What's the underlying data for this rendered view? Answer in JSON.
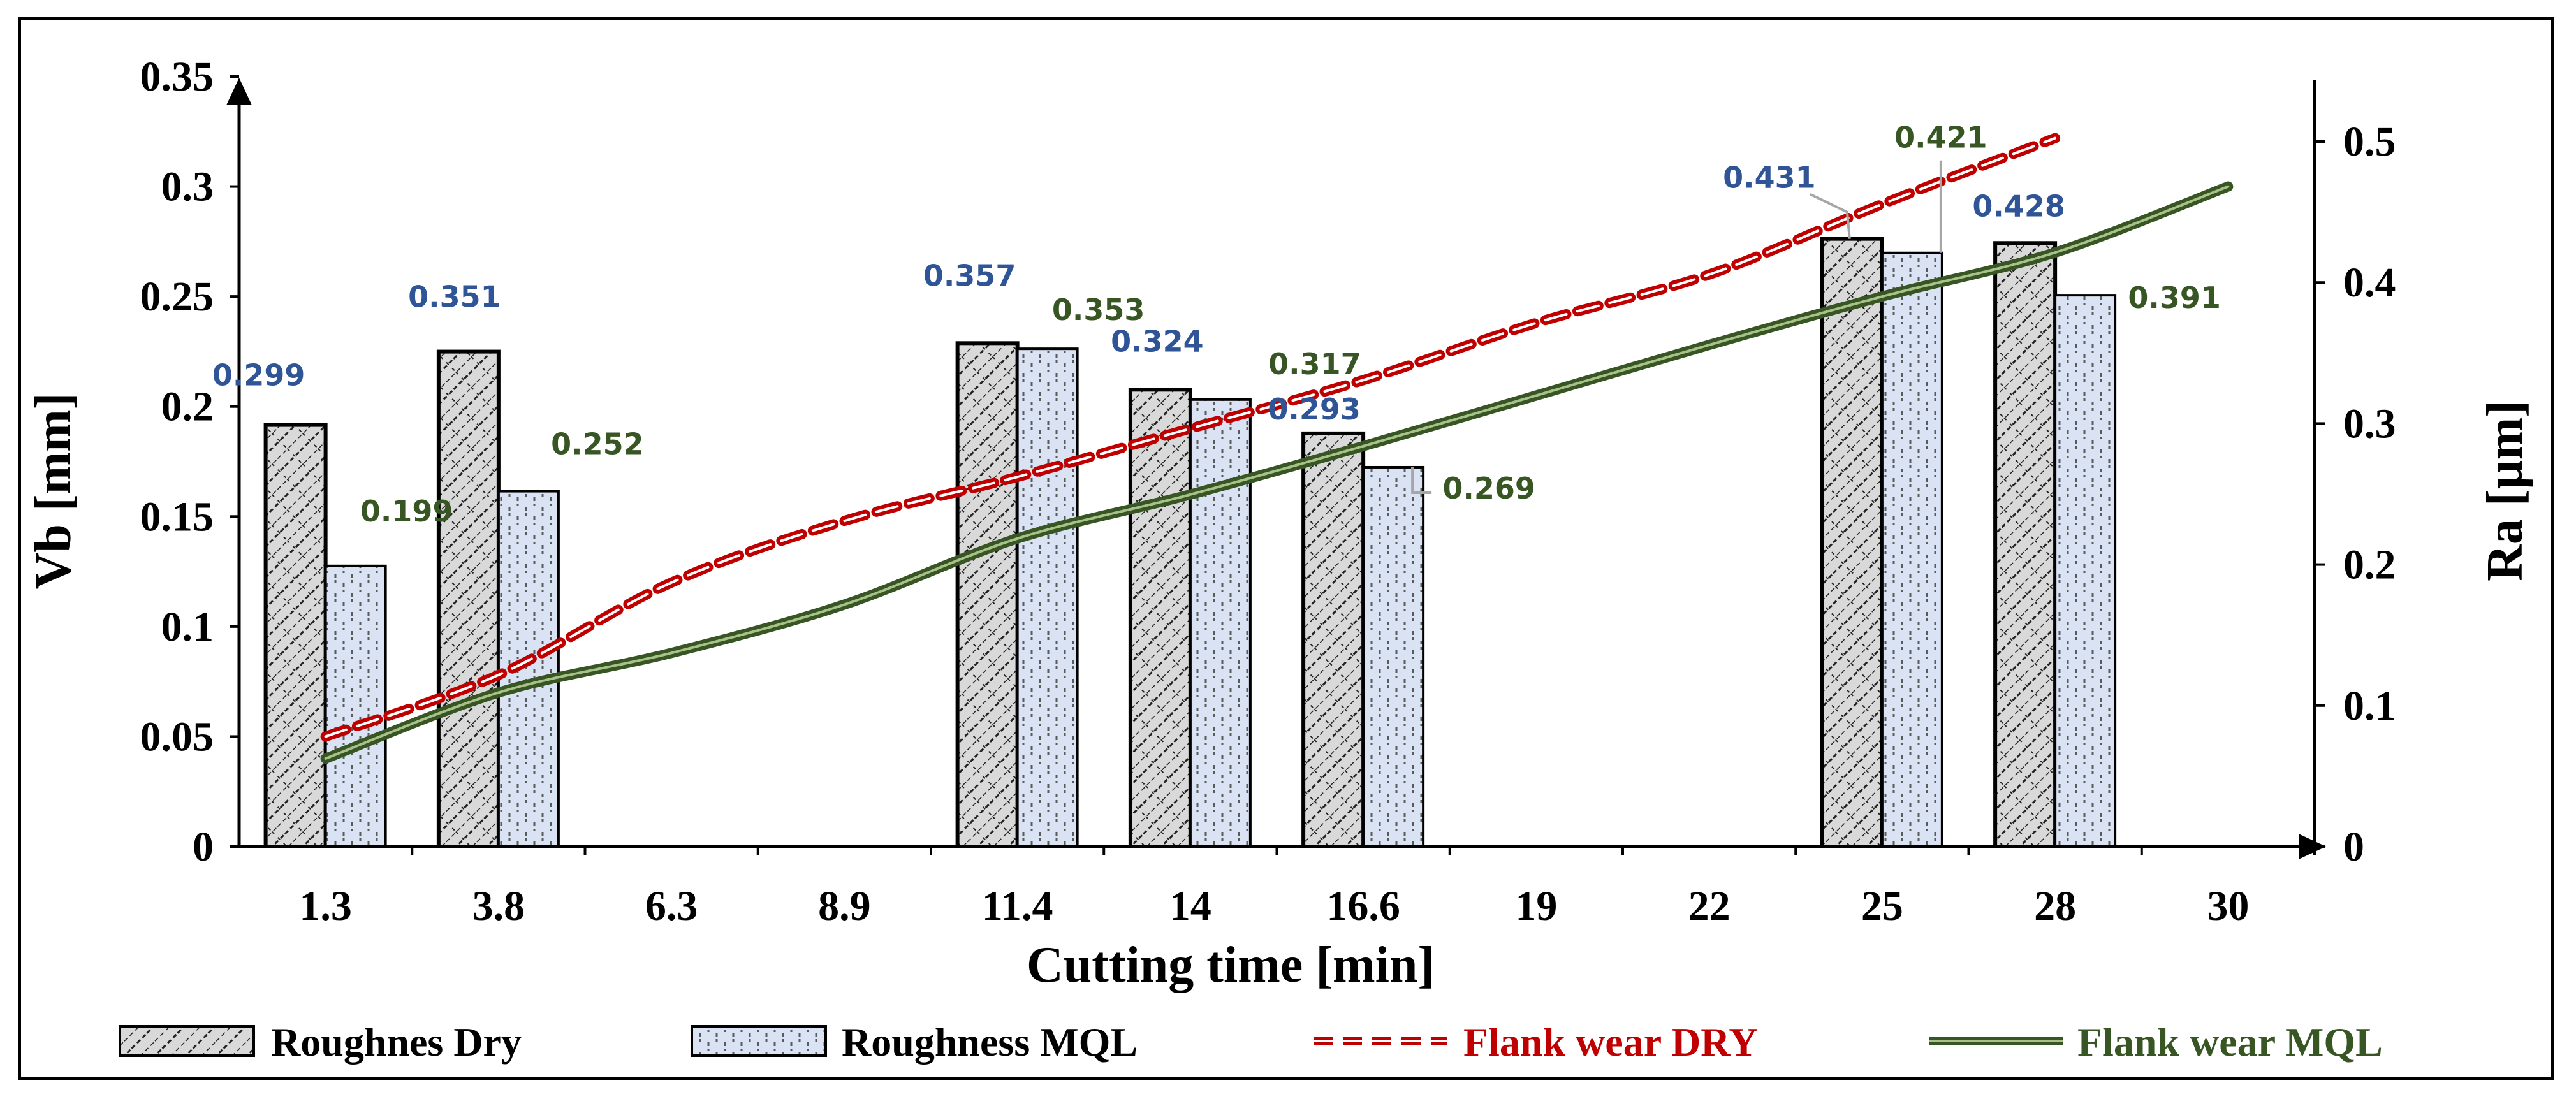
{
  "chart_data": {
    "type": "bar",
    "categories": [
      "1.3",
      "3.8",
      "6.3",
      "8.9",
      "11.4",
      "14",
      "16.6",
      "19",
      "22",
      "25",
      "28",
      "30"
    ],
    "xlabel": "Cutting time [min]",
    "ylabel": "Vb [mm]",
    "y2label": "Ra [µm]",
    "ylim": [
      0,
      0.35
    ],
    "y2lim": [
      0,
      0.55
    ],
    "yticks": [
      "0",
      "0.05",
      "0.1",
      "0.15",
      "0.2",
      "0.25",
      "0.3",
      "0.35"
    ],
    "y2ticks": [
      "0",
      "0.1",
      "0.2",
      "0.3",
      "0.4",
      "0.5"
    ],
    "grid": false,
    "legend_position": "bottom",
    "bar_series": [
      {
        "name": "Roughnes Dry",
        "axis": "right",
        "values": [
          0.299,
          0.351,
          null,
          null,
          0.357,
          0.324,
          0.293,
          null,
          null,
          0.431,
          0.428,
          null
        ],
        "labels": [
          "0.299",
          "0.351",
          "",
          "",
          "0.357",
          "0.324",
          "0.293",
          "",
          "",
          "0.431",
          "0.428",
          ""
        ],
        "fill": "#d9d9d9",
        "label_color": "#2f5597"
      },
      {
        "name": "Roughness MQL",
        "axis": "right",
        "values": [
          0.199,
          0.252,
          null,
          null,
          0.353,
          0.317,
          0.269,
          null,
          null,
          0.421,
          0.391,
          null
        ],
        "labels": [
          "0.199",
          "0.252",
          "",
          "",
          "0.353",
          "0.317",
          "0.269",
          "",
          "",
          "0.421",
          "0.391",
          ""
        ],
        "fill": "#dae3f3",
        "label_color": "#375623"
      }
    ],
    "line_series": [
      {
        "name": "Flank wear DRY",
        "axis": "left",
        "values": [
          0.05,
          0.078,
          0.12,
          0.148,
          0.168,
          0.19,
          0.212,
          0.238,
          0.26,
          0.292,
          0.322,
          null
        ],
        "color": "#c00000",
        "style": "dashed"
      },
      {
        "name": "Flank wear MQL",
        "axis": "left",
        "values": [
          0.04,
          0.07,
          0.088,
          0.11,
          0.14,
          0.16,
          0.182,
          0.205,
          0.228,
          0.25,
          0.27,
          0.3
        ],
        "color": "#375623",
        "style": "solid-double"
      }
    ]
  }
}
